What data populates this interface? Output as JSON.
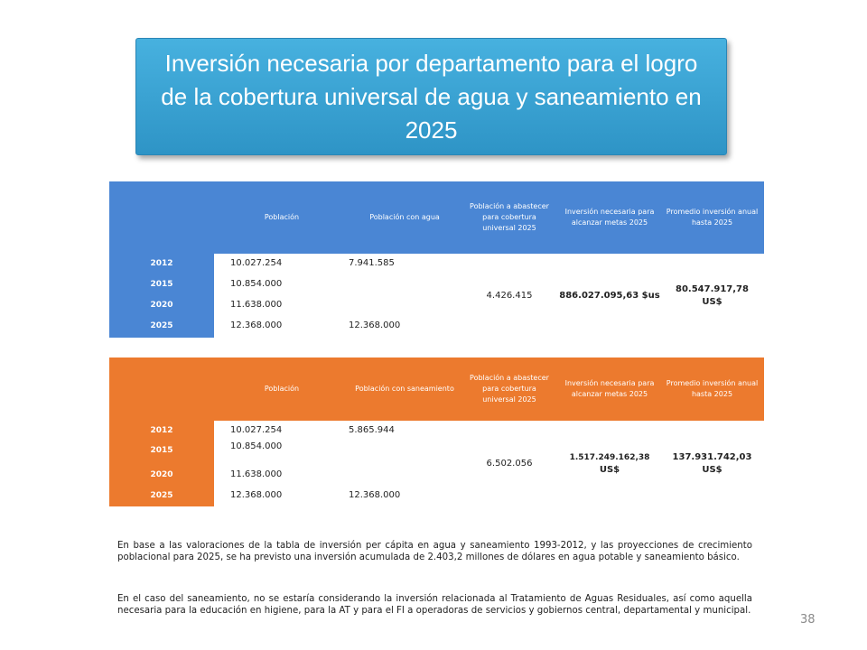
{
  "title": "Inversión necesaria por departamento para el logro de la cobertura universal de agua y saneamiento en 2025",
  "table_water": {
    "headers": [
      "Población",
      "Población con agua",
      "Población a abastecer para cobertura universal 2025",
      "Inversión necesaria para alcanzar metas 2025",
      "Promedio inversión anual hasta 2025"
    ],
    "rows": [
      {
        "year": "2012",
        "population": "10.027.254",
        "with_service": "7.941.585"
      },
      {
        "year": "2015",
        "population": "10.854.000",
        "with_service": ""
      },
      {
        "year": "2020",
        "population": "11.638.000",
        "with_service": ""
      },
      {
        "year": "2025",
        "population": "12.368.000",
        "with_service": "12.368.000"
      }
    ],
    "to_supply": "4.426.415",
    "investment": "886.027.095,63 $us",
    "annual_avg_line1": "80.547.917,78",
    "annual_avg_line2": "US$"
  },
  "table_sanitation": {
    "headers": [
      "Población",
      "Población con saneamiento",
      "Población a abastecer para cobertura universal 2025",
      "Inversión necesaria para alcanzar metas 2025",
      "Promedio inversión anual hasta 2025"
    ],
    "rows": [
      {
        "year": "2012",
        "population": "10.027.254",
        "with_service": "5.865.944"
      },
      {
        "year": "2015",
        "population": "10.854.000",
        "with_service": ""
      },
      {
        "year": "2020",
        "population": "11.638.000",
        "with_service": ""
      },
      {
        "year": "2025",
        "population": "12.368.000",
        "with_service": "12.368.000"
      }
    ],
    "to_supply": "6.502.056",
    "investment_line1": "1.517.249.162,38",
    "investment_line2": "US$",
    "annual_avg_line1": "137.931.742,03",
    "annual_avg_line2": "US$"
  },
  "paragraph1": "En base a las valoraciones de la tabla de inversión per cápita en agua y saneamiento 1993-2012, y las proyecciones de crecimiento poblacional para 2025, se ha previsto una inversión acumulada de 2.403,2 millones de dólares en agua potable y saneamiento básico.",
  "paragraph2": "En el caso del saneamiento, no se estaría considerando la inversión relacionada al Tratamiento de Aguas Residuales, así como aquella necesaria para la educación en higiene, para la AT y para el FI a operadoras de servicios y gobiernos central, departamental y municipal.",
  "page_number": "38"
}
